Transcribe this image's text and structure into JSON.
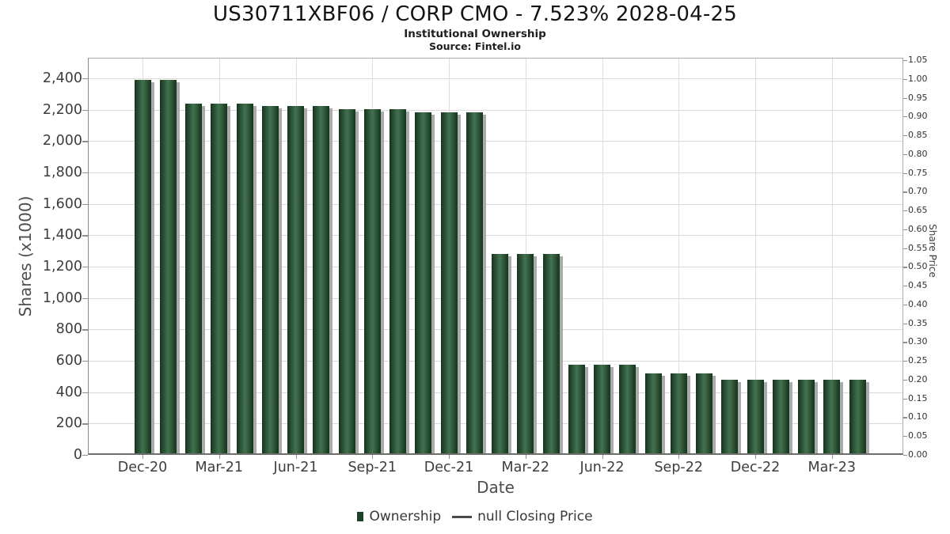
{
  "header": {
    "title": "US30711XBF06 / CORP CMO - 7.523% 2028-04-25",
    "subtitle": "Institutional Ownership",
    "source": "Source: Fintel.io"
  },
  "chart_data": {
    "type": "bar",
    "title": "US30711XBF06 / CORP CMO - 7.523% 2028-04-25",
    "subtitle": "Institutional Ownership",
    "source": "Source: Fintel.io",
    "xlabel": "Date",
    "ylabel_left": "Shares (x1000)",
    "ylabel_right": "Share Price",
    "categories": [
      "Dec-20",
      "Jan-21",
      "Feb-21",
      "Mar-21",
      "Apr-21",
      "May-21",
      "Jun-21",
      "Jul-21",
      "Aug-21",
      "Sep-21",
      "Oct-21",
      "Nov-21",
      "Dec-21",
      "Jan-22",
      "Feb-22",
      "Mar-22",
      "Apr-22",
      "May-22",
      "Jun-22",
      "Jul-22",
      "Aug-22",
      "Sep-22",
      "Oct-22",
      "Nov-22",
      "Dec-22",
      "Jan-23",
      "Feb-23",
      "Mar-23",
      "Apr-23"
    ],
    "series": [
      {
        "name": "Ownership",
        "values": [
          2390,
          2390,
          2240,
          2240,
          2240,
          2225,
          2225,
          2225,
          2205,
          2205,
          2205,
          2185,
          2185,
          2185,
          1280,
          1280,
          1280,
          575,
          575,
          575,
          520,
          520,
          520,
          480,
          480,
          480,
          480,
          480,
          480
        ]
      },
      {
        "name": "null Closing Price",
        "values": []
      }
    ],
    "xticks": [
      "Dec-20",
      "Mar-21",
      "Jun-21",
      "Sep-21",
      "Dec-21",
      "Mar-22",
      "Jun-22",
      "Sep-22",
      "Dec-22",
      "Mar-23"
    ],
    "xtick_every_n_bars": 3,
    "yticks_left": [
      0,
      200,
      400,
      600,
      800,
      1000,
      1200,
      1400,
      1600,
      1800,
      2000,
      2200,
      2400
    ],
    "yticks_right": [
      0.0,
      0.05,
      0.1,
      0.15,
      0.2,
      0.25,
      0.3,
      0.35,
      0.4,
      0.45,
      0.5,
      0.55,
      0.6,
      0.65,
      0.7,
      0.75,
      0.8,
      0.85,
      0.9,
      0.95,
      1.0,
      1.05
    ],
    "ylim_left": [
      0,
      2530
    ],
    "ylim_right": [
      0,
      1.05
    ],
    "grid": true,
    "legend_position": "bottom",
    "legend": [
      {
        "label": "Ownership",
        "marker": "square",
        "color": "#1c4227"
      },
      {
        "label": "null Closing Price",
        "marker": "line",
        "color": "#4a4a4a"
      }
    ],
    "colors": {
      "bar_edge": "#16341f",
      "bar_mid": "#427150",
      "bar_base": "#2d5839",
      "bar_shadow": "#ababab",
      "gridline": "#d9d9d9",
      "tick_text": "#3d3d3d",
      "axis_title_text": "#4d4d4d",
      "title_text": "#141414"
    }
  }
}
